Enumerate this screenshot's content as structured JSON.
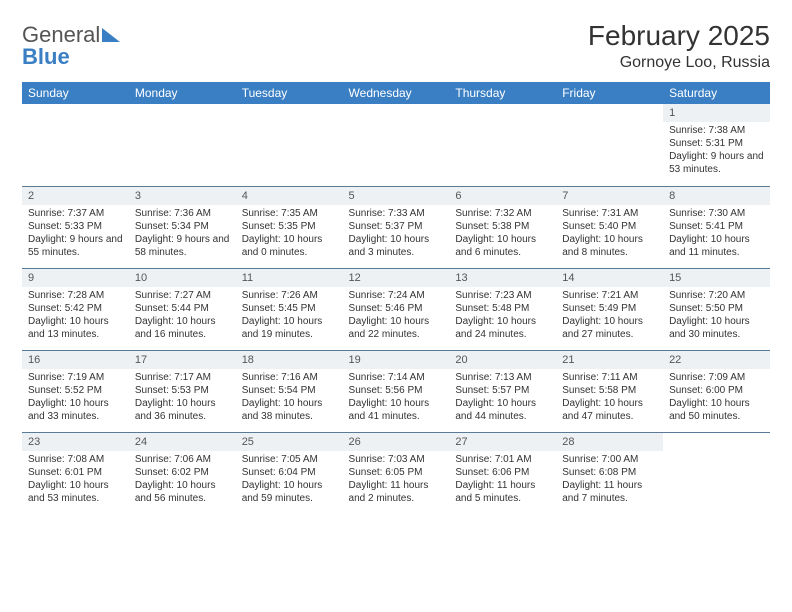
{
  "brand": {
    "text1": "General",
    "text2": "Blue"
  },
  "title": "February 2025",
  "location": "Gornoye Loo, Russia",
  "colors": {
    "header_bg": "#3a7fc4",
    "header_text": "#ffffff",
    "daynum_bg": "#eef1f3",
    "rule": "#5a7a9a",
    "body_text": "#333333",
    "page_bg": "#ffffff"
  },
  "days_of_week": [
    "Sunday",
    "Monday",
    "Tuesday",
    "Wednesday",
    "Thursday",
    "Friday",
    "Saturday"
  ],
  "weeks": [
    [
      {
        "n": "",
        "sr": "",
        "ss": "",
        "dl": ""
      },
      {
        "n": "",
        "sr": "",
        "ss": "",
        "dl": ""
      },
      {
        "n": "",
        "sr": "",
        "ss": "",
        "dl": ""
      },
      {
        "n": "",
        "sr": "",
        "ss": "",
        "dl": ""
      },
      {
        "n": "",
        "sr": "",
        "ss": "",
        "dl": ""
      },
      {
        "n": "",
        "sr": "",
        "ss": "",
        "dl": ""
      },
      {
        "n": "1",
        "sr": "Sunrise: 7:38 AM",
        "ss": "Sunset: 5:31 PM",
        "dl": "Daylight: 9 hours and 53 minutes."
      }
    ],
    [
      {
        "n": "2",
        "sr": "Sunrise: 7:37 AM",
        "ss": "Sunset: 5:33 PM",
        "dl": "Daylight: 9 hours and 55 minutes."
      },
      {
        "n": "3",
        "sr": "Sunrise: 7:36 AM",
        "ss": "Sunset: 5:34 PM",
        "dl": "Daylight: 9 hours and 58 minutes."
      },
      {
        "n": "4",
        "sr": "Sunrise: 7:35 AM",
        "ss": "Sunset: 5:35 PM",
        "dl": "Daylight: 10 hours and 0 minutes."
      },
      {
        "n": "5",
        "sr": "Sunrise: 7:33 AM",
        "ss": "Sunset: 5:37 PM",
        "dl": "Daylight: 10 hours and 3 minutes."
      },
      {
        "n": "6",
        "sr": "Sunrise: 7:32 AM",
        "ss": "Sunset: 5:38 PM",
        "dl": "Daylight: 10 hours and 6 minutes."
      },
      {
        "n": "7",
        "sr": "Sunrise: 7:31 AM",
        "ss": "Sunset: 5:40 PM",
        "dl": "Daylight: 10 hours and 8 minutes."
      },
      {
        "n": "8",
        "sr": "Sunrise: 7:30 AM",
        "ss": "Sunset: 5:41 PM",
        "dl": "Daylight: 10 hours and 11 minutes."
      }
    ],
    [
      {
        "n": "9",
        "sr": "Sunrise: 7:28 AM",
        "ss": "Sunset: 5:42 PM",
        "dl": "Daylight: 10 hours and 13 minutes."
      },
      {
        "n": "10",
        "sr": "Sunrise: 7:27 AM",
        "ss": "Sunset: 5:44 PM",
        "dl": "Daylight: 10 hours and 16 minutes."
      },
      {
        "n": "11",
        "sr": "Sunrise: 7:26 AM",
        "ss": "Sunset: 5:45 PM",
        "dl": "Daylight: 10 hours and 19 minutes."
      },
      {
        "n": "12",
        "sr": "Sunrise: 7:24 AM",
        "ss": "Sunset: 5:46 PM",
        "dl": "Daylight: 10 hours and 22 minutes."
      },
      {
        "n": "13",
        "sr": "Sunrise: 7:23 AM",
        "ss": "Sunset: 5:48 PM",
        "dl": "Daylight: 10 hours and 24 minutes."
      },
      {
        "n": "14",
        "sr": "Sunrise: 7:21 AM",
        "ss": "Sunset: 5:49 PM",
        "dl": "Daylight: 10 hours and 27 minutes."
      },
      {
        "n": "15",
        "sr": "Sunrise: 7:20 AM",
        "ss": "Sunset: 5:50 PM",
        "dl": "Daylight: 10 hours and 30 minutes."
      }
    ],
    [
      {
        "n": "16",
        "sr": "Sunrise: 7:19 AM",
        "ss": "Sunset: 5:52 PM",
        "dl": "Daylight: 10 hours and 33 minutes."
      },
      {
        "n": "17",
        "sr": "Sunrise: 7:17 AM",
        "ss": "Sunset: 5:53 PM",
        "dl": "Daylight: 10 hours and 36 minutes."
      },
      {
        "n": "18",
        "sr": "Sunrise: 7:16 AM",
        "ss": "Sunset: 5:54 PM",
        "dl": "Daylight: 10 hours and 38 minutes."
      },
      {
        "n": "19",
        "sr": "Sunrise: 7:14 AM",
        "ss": "Sunset: 5:56 PM",
        "dl": "Daylight: 10 hours and 41 minutes."
      },
      {
        "n": "20",
        "sr": "Sunrise: 7:13 AM",
        "ss": "Sunset: 5:57 PM",
        "dl": "Daylight: 10 hours and 44 minutes."
      },
      {
        "n": "21",
        "sr": "Sunrise: 7:11 AM",
        "ss": "Sunset: 5:58 PM",
        "dl": "Daylight: 10 hours and 47 minutes."
      },
      {
        "n": "22",
        "sr": "Sunrise: 7:09 AM",
        "ss": "Sunset: 6:00 PM",
        "dl": "Daylight: 10 hours and 50 minutes."
      }
    ],
    [
      {
        "n": "23",
        "sr": "Sunrise: 7:08 AM",
        "ss": "Sunset: 6:01 PM",
        "dl": "Daylight: 10 hours and 53 minutes."
      },
      {
        "n": "24",
        "sr": "Sunrise: 7:06 AM",
        "ss": "Sunset: 6:02 PM",
        "dl": "Daylight: 10 hours and 56 minutes."
      },
      {
        "n": "25",
        "sr": "Sunrise: 7:05 AM",
        "ss": "Sunset: 6:04 PM",
        "dl": "Daylight: 10 hours and 59 minutes."
      },
      {
        "n": "26",
        "sr": "Sunrise: 7:03 AM",
        "ss": "Sunset: 6:05 PM",
        "dl": "Daylight: 11 hours and 2 minutes."
      },
      {
        "n": "27",
        "sr": "Sunrise: 7:01 AM",
        "ss": "Sunset: 6:06 PM",
        "dl": "Daylight: 11 hours and 5 minutes."
      },
      {
        "n": "28",
        "sr": "Sunrise: 7:00 AM",
        "ss": "Sunset: 6:08 PM",
        "dl": "Daylight: 11 hours and 7 minutes."
      },
      {
        "n": "",
        "sr": "",
        "ss": "",
        "dl": ""
      }
    ]
  ]
}
